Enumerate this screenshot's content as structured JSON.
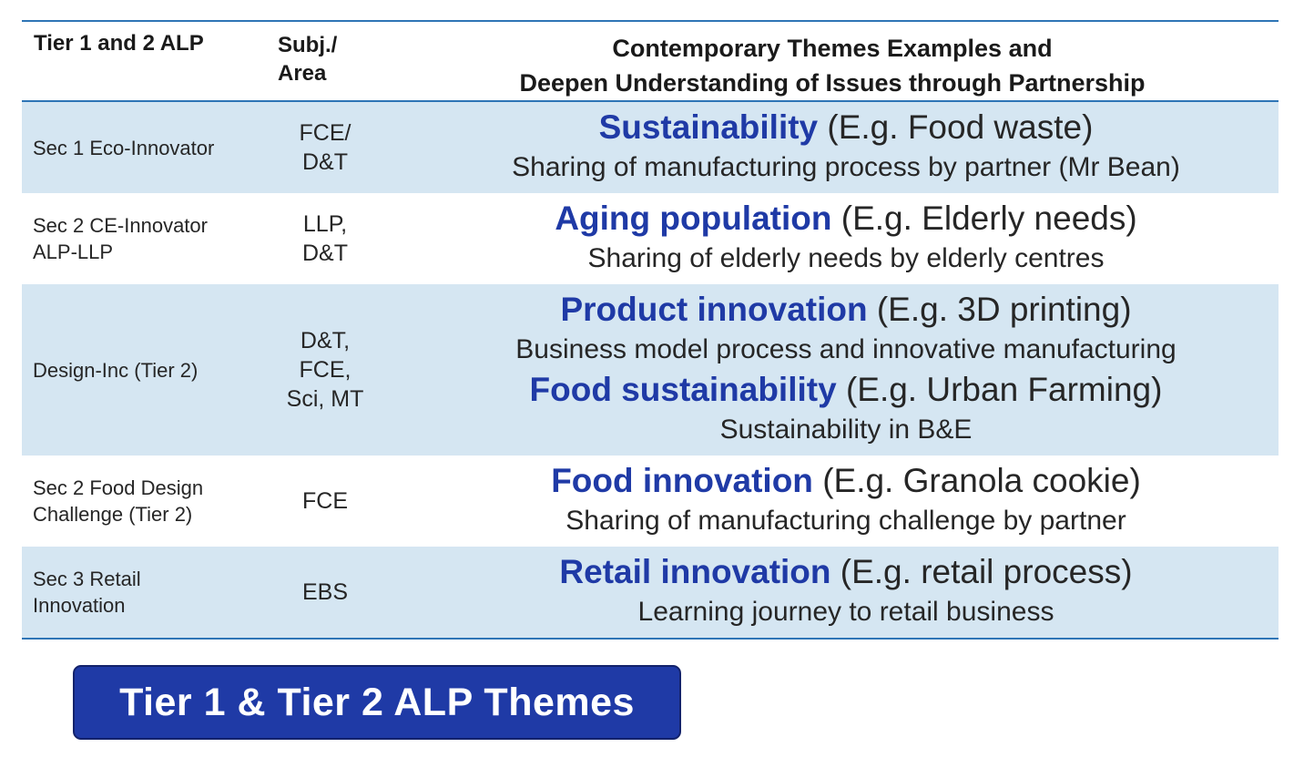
{
  "table": {
    "headers": {
      "col1": "Tier 1 and 2 ALP",
      "col2_lines": [
        "Subj./",
        "Area"
      ],
      "col3_lines": [
        "Contemporary Themes Examples and",
        "Deepen Understanding of Issues through Partnership"
      ]
    },
    "rows": [
      {
        "program_lines": [
          "Sec 1 Eco-Innovator"
        ],
        "subject_lines": [
          "FCE/",
          "D&T"
        ],
        "themes": [
          {
            "title": "Sustainability",
            "example": " (E.g. Food waste)",
            "description": "Sharing of manufacturing process by partner (Mr Bean)"
          }
        ]
      },
      {
        "program_lines": [
          "Sec 2 CE-Innovator",
          "ALP-LLP"
        ],
        "subject_lines": [
          "LLP,",
          "D&T"
        ],
        "themes": [
          {
            "title": "Aging population",
            "example": " (E.g. Elderly needs)",
            "description": "Sharing of elderly needs by elderly centres"
          }
        ]
      },
      {
        "program_lines": [
          "Design-Inc (Tier 2)"
        ],
        "subject_lines": [
          "D&T,",
          "FCE,",
          "Sci, MT"
        ],
        "themes": [
          {
            "title": "Product innovation",
            "example": " (E.g. 3D printing)",
            "description": "Business model process and innovative manufacturing"
          },
          {
            "title": "Food sustainability",
            "example": " (E.g. Urban Farming)",
            "description": "Sustainability in B&E"
          }
        ]
      },
      {
        "program_lines": [
          "Sec 2 Food Design",
          "Challenge (Tier 2)"
        ],
        "subject_lines": [
          "FCE"
        ],
        "themes": [
          {
            "title": "Food innovation",
            "example": " (E.g. Granola cookie)",
            "description": "Sharing of manufacturing challenge by partner"
          }
        ]
      },
      {
        "program_lines": [
          "Sec 3 Retail",
          "Innovation"
        ],
        "subject_lines": [
          "EBS"
        ],
        "themes": [
          {
            "title": "Retail innovation",
            "example": " (E.g. retail process)",
            "description": "Learning journey to retail business"
          }
        ]
      }
    ]
  },
  "banner": {
    "label": "Tier 1 & Tier 2 ALP Themes"
  },
  "colors": {
    "accent_blue": "#1f3aa6",
    "rule_blue": "#2e75b6",
    "row_shade": "#d5e6f2"
  }
}
